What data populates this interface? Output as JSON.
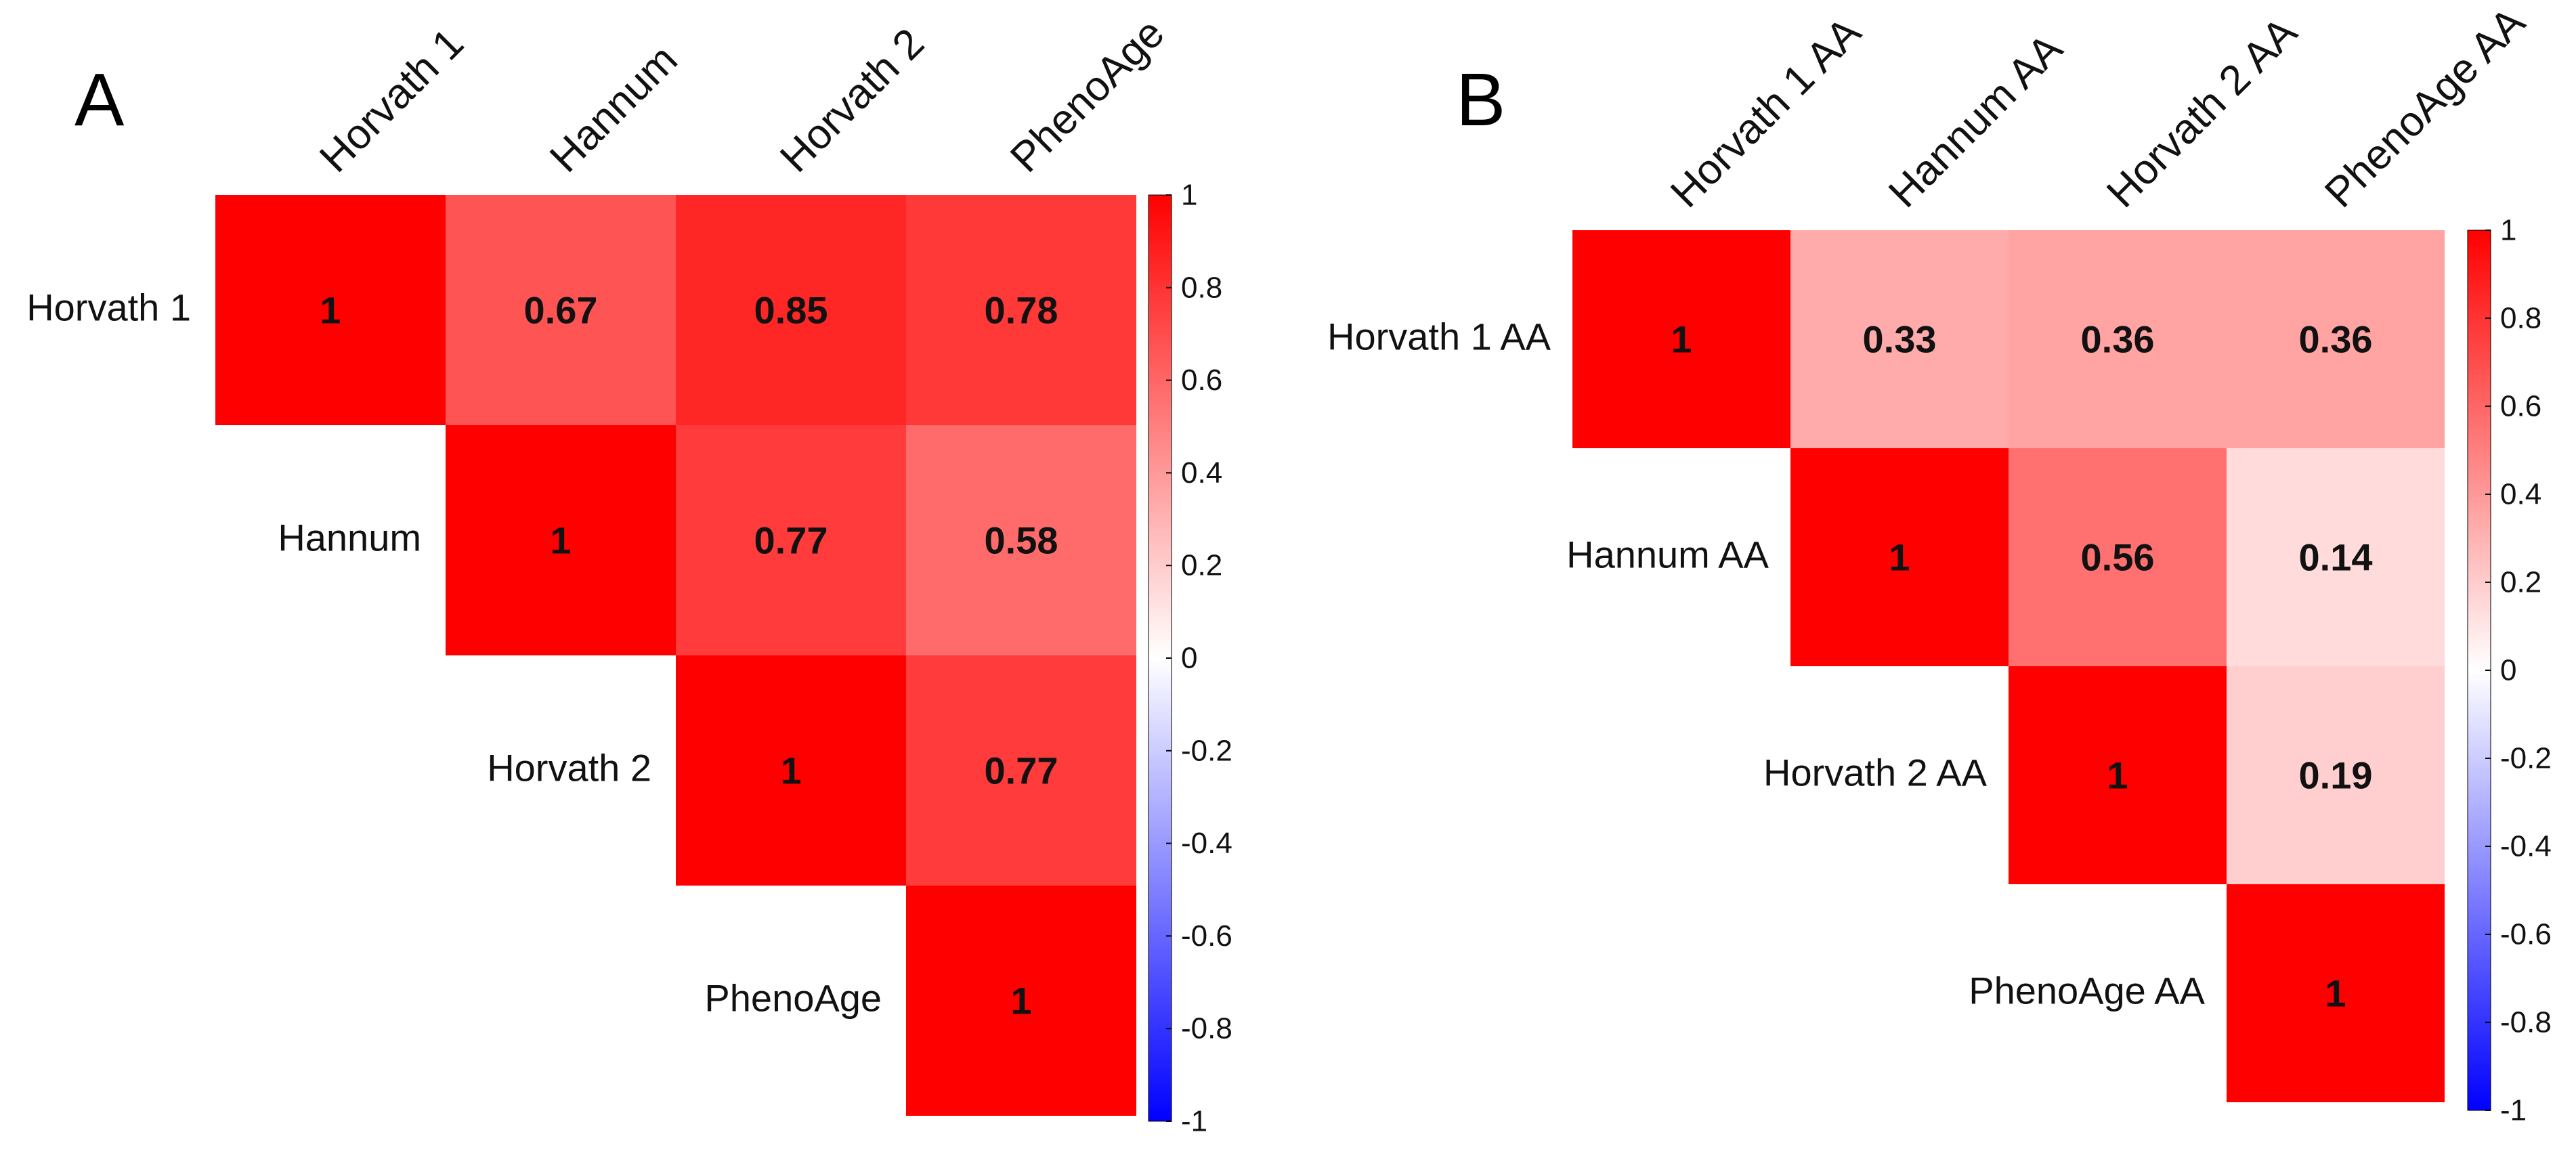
{
  "chart_data": [
    {
      "type": "heatmap",
      "panel": "A",
      "variables": [
        "Horvath 1",
        "Hannum",
        "Horvath 2",
        "PhenoAge"
      ],
      "matrix": [
        [
          1,
          0.67,
          0.85,
          0.78
        ],
        [
          null,
          1,
          0.77,
          0.58
        ],
        [
          null,
          null,
          1,
          0.77
        ],
        [
          null,
          null,
          null,
          1
        ]
      ],
      "cell_labels": [
        [
          "1",
          "0.67",
          "0.85",
          "0.78"
        ],
        [
          null,
          "1",
          "0.77",
          "0.58"
        ],
        [
          null,
          null,
          "1",
          "0.77"
        ],
        [
          null,
          null,
          null,
          "1"
        ]
      ],
      "color_range": [
        -1,
        1
      ],
      "colorbar_ticks": [
        "1",
        "0.8",
        "0.6",
        "0.4",
        "0.2",
        "0",
        "-0.2",
        "-0.4",
        "-0.6",
        "-0.8",
        "-1"
      ],
      "colors": {
        "low": "#0000ff",
        "mid": "#ffffff",
        "high": "#ff0000"
      }
    },
    {
      "type": "heatmap",
      "panel": "B",
      "variables": [
        "Horvath 1 AA",
        "Hannum AA",
        "Horvath 2 AA",
        "PhenoAge AA"
      ],
      "matrix": [
        [
          1,
          0.33,
          0.36,
          0.36
        ],
        [
          null,
          1,
          0.56,
          0.14
        ],
        [
          null,
          null,
          1,
          0.19
        ],
        [
          null,
          null,
          null,
          1
        ]
      ],
      "cell_labels": [
        [
          "1",
          "0.33",
          "0.36",
          "0.36"
        ],
        [
          null,
          "1",
          "0.56",
          "0.14"
        ],
        [
          null,
          null,
          "1",
          "0.19"
        ],
        [
          null,
          null,
          null,
          "1"
        ]
      ],
      "color_range": [
        -1,
        1
      ],
      "colorbar_ticks": [
        "1",
        "0.8",
        "0.6",
        "0.4",
        "0.2",
        "0",
        "-0.2",
        "-0.4",
        "-0.6",
        "-0.8",
        "-1"
      ],
      "colors": {
        "low": "#0000ff",
        "mid": "#ffffff",
        "high": "#ff0000"
      }
    }
  ]
}
